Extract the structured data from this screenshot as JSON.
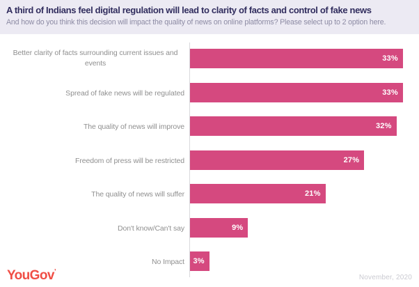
{
  "header": {
    "title": "A third of Indians feel digital regulation will lead to clarity of facts and control of fake news",
    "subtitle": "And how do you think this decision will impact the quality of news on online platforms? Please select up to 2 option here."
  },
  "chart_data": {
    "type": "bar",
    "orientation": "horizontal",
    "title": "A third of Indians feel digital regulation will lead to clarity of facts and control of fake news",
    "subtitle": "And how do you think this decision will impact the quality of news on online platforms? Please select up to 2 option here.",
    "categories": [
      "Better clarity of facts surrounding current issues and events",
      "Spread of fake news will be regulated",
      "The quality of news will improve",
      "Freedom of press will be restricted",
      "The quality of news will suffer",
      "Don't know/Can't say",
      "No Impact"
    ],
    "values": [
      33,
      33,
      32,
      27,
      21,
      9,
      3
    ],
    "unit": "%",
    "xlim": [
      0,
      35.5
    ],
    "grid": false,
    "legend": null,
    "value_labels": "inside-end",
    "colors": {
      "bar": "#D5497F",
      "value_label": "#FFFFFF",
      "category_label": "#8F8F8F",
      "axis": "#D8D8DC",
      "header_background": "#ECEAF3",
      "title": "#312D5E",
      "subtitle": "#8D8BA4"
    }
  },
  "footer": {
    "brand": "YouGov",
    "brand_mark": "’",
    "date": "November, 2020"
  }
}
